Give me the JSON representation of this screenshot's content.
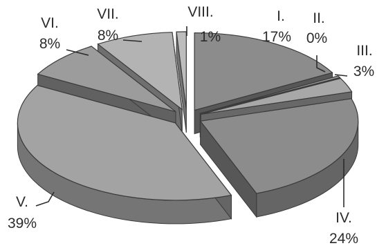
{
  "chart_data": {
    "type": "pie",
    "style": "3d-exploded",
    "title": "",
    "slices": [
      {
        "name": "I.",
        "value": 17,
        "label": "17%",
        "color": "#8c8c8c"
      },
      {
        "name": "II.",
        "value": 0,
        "label": "0%",
        "color": "#9a9a9a"
      },
      {
        "name": "III.",
        "value": 3,
        "label": "3%",
        "color": "#a8a8a8"
      },
      {
        "name": "IV.",
        "value": 24,
        "label": "24%",
        "color": "#8c8c8c"
      },
      {
        "name": "V.",
        "value": 39,
        "label": "39%",
        "color": "#a3a3a3"
      },
      {
        "name": "VI.",
        "value": 8,
        "label": "8%",
        "color": "#9c9c9c"
      },
      {
        "name": "VII.",
        "value": 8,
        "label": "8%",
        "color": "#b3b3b3"
      },
      {
        "name": "VIII.",
        "value": 1,
        "label": "1%",
        "color": "#bdbdbd"
      }
    ]
  }
}
